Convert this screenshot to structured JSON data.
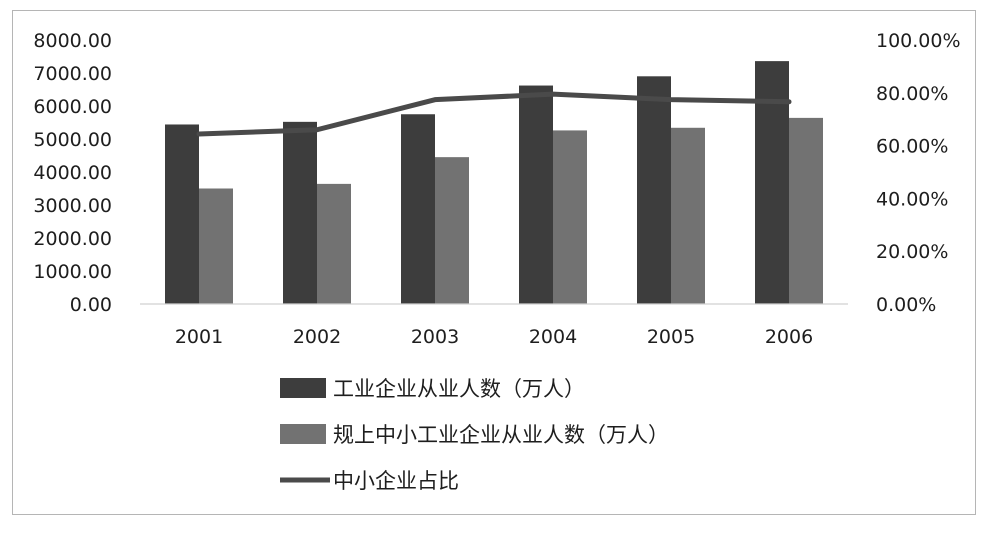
{
  "chart_data": {
    "type": "bar",
    "categories": [
      "2001",
      "2002",
      "2003",
      "2004",
      "2005",
      "2006"
    ],
    "series": [
      {
        "name": "工业企业从业人数（万人）",
        "kind": "bar",
        "axis": "left",
        "color": "#3d3d3d",
        "values": [
          5440,
          5520,
          5750,
          6620,
          6900,
          7360
        ]
      },
      {
        "name": "规上中小工业企业从业人数（万人）",
        "kind": "bar",
        "axis": "left",
        "color": "#727272",
        "values": [
          3500,
          3640,
          4450,
          5260,
          5340,
          5640
        ]
      },
      {
        "name": "中小企业占比",
        "kind": "line",
        "axis": "right",
        "color": "#4a4a4a",
        "values": [
          0.644,
          0.66,
          0.774,
          0.795,
          0.774,
          0.766
        ]
      }
    ],
    "ylim_left": [
      0,
      8000
    ],
    "ylim_right": [
      0,
      1.0
    ],
    "left_ticks": [
      "0.00",
      "1000.00",
      "2000.00",
      "3000.00",
      "4000.00",
      "5000.00",
      "6000.00",
      "7000.00",
      "8000.00"
    ],
    "right_ticks": [
      "0.00%",
      "20.00%",
      "40.00%",
      "60.00%",
      "80.00%",
      "100.00%"
    ],
    "grid": false,
    "legend_position": "bottom",
    "title": "",
    "xlabel": "",
    "ylabel": ""
  }
}
